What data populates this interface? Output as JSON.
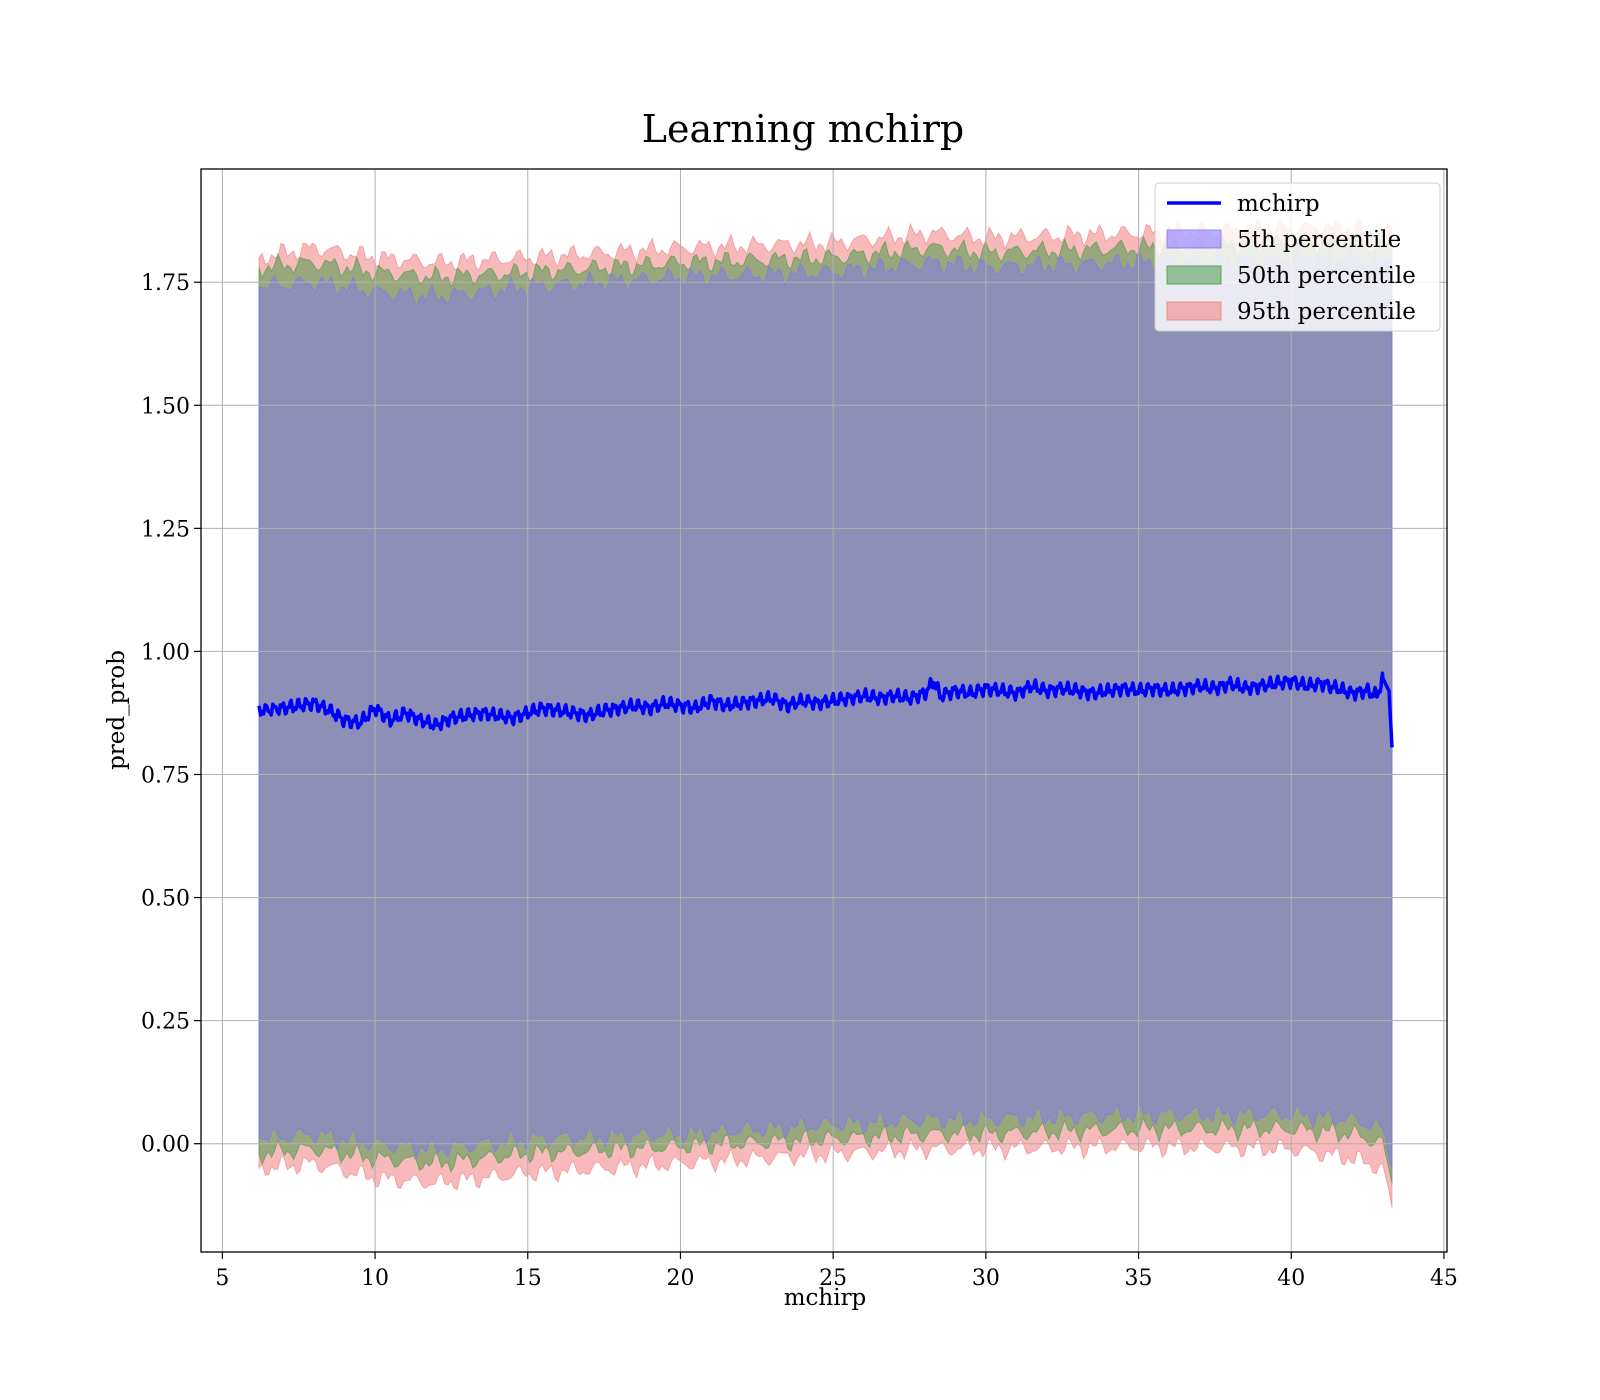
{
  "chart_data": {
    "type": "area",
    "title": "Learning mchirp",
    "xlabel": "mchirp",
    "ylabel": "pred_prob",
    "xlim": [
      4.3,
      45.1
    ],
    "ylim": [
      -0.22,
      1.98
    ],
    "xticks": [
      5,
      10,
      15,
      20,
      25,
      30,
      35,
      40,
      45
    ],
    "yticks": [
      0.0,
      0.25,
      0.5,
      0.75,
      1.0,
      1.25,
      1.5,
      1.75
    ],
    "ytick_labels": [
      "0.00",
      "0.25",
      "0.50",
      "0.75",
      "1.00",
      "1.25",
      "1.50",
      "1.75"
    ],
    "grid": true,
    "legend_position": "top-right",
    "legend": [
      {
        "label": "mchirp",
        "kind": "line",
        "color": "#0000ff"
      },
      {
        "label": "5th percentile",
        "kind": "band",
        "color": "#8070ff"
      },
      {
        "label": "50th percentile",
        "kind": "band",
        "color": "#4a9a4a"
      },
      {
        "label": "95th percentile",
        "kind": "band",
        "color": "#f08080"
      }
    ],
    "line_series": {
      "name": "mchirp",
      "color": "#0000ff",
      "x": [
        6.2,
        7.0,
        7.5,
        8.0,
        8.5,
        9.0,
        9.5,
        10.0,
        10.5,
        11.0,
        11.5,
        12.0,
        12.5,
        13.0,
        13.5,
        14.0,
        14.5,
        15.0,
        15.5,
        16.0,
        16.5,
        17.0,
        17.5,
        18.0,
        18.5,
        19.0,
        19.5,
        20.0,
        20.5,
        21.0,
        21.5,
        22.0,
        22.5,
        23.0,
        23.5,
        24.0,
        24.5,
        25.0,
        25.5,
        26.0,
        26.5,
        27.0,
        27.5,
        28.0,
        28.3,
        28.5,
        29.0,
        29.5,
        30.0,
        30.5,
        31.0,
        31.5,
        32.0,
        32.5,
        33.0,
        33.5,
        34.0,
        34.5,
        35.0,
        35.5,
        36.0,
        36.5,
        37.0,
        37.5,
        38.0,
        38.5,
        39.0,
        39.5,
        40.0,
        40.5,
        41.0,
        41.5,
        42.0,
        42.5,
        42.8,
        43.0,
        43.2,
        43.3
      ],
      "y": [
        0.88,
        0.885,
        0.89,
        0.895,
        0.88,
        0.86,
        0.855,
        0.885,
        0.86,
        0.875,
        0.86,
        0.85,
        0.865,
        0.87,
        0.875,
        0.87,
        0.865,
        0.875,
        0.885,
        0.88,
        0.875,
        0.87,
        0.88,
        0.885,
        0.89,
        0.885,
        0.895,
        0.89,
        0.885,
        0.9,
        0.89,
        0.895,
        0.9,
        0.905,
        0.89,
        0.9,
        0.895,
        0.9,
        0.905,
        0.91,
        0.905,
        0.91,
        0.905,
        0.915,
        0.94,
        0.91,
        0.92,
        0.915,
        0.925,
        0.92,
        0.915,
        0.93,
        0.92,
        0.925,
        0.92,
        0.915,
        0.92,
        0.925,
        0.92,
        0.925,
        0.92,
        0.925,
        0.93,
        0.925,
        0.935,
        0.925,
        0.93,
        0.935,
        0.94,
        0.93,
        0.935,
        0.925,
        0.915,
        0.92,
        0.91,
        0.945,
        0.92,
        0.805
      ]
    },
    "bands": [
      {
        "name": "95th percentile",
        "color": "#f08080",
        "x": [
          6.2,
          8.0,
          10.0,
          12.0,
          15.0,
          20.0,
          25.0,
          28.2,
          30.0,
          35.0,
          40.0,
          42.0,
          43.0,
          43.3
        ],
        "lower": [
          -0.05,
          -0.04,
          -0.07,
          -0.08,
          -0.06,
          -0.04,
          -0.02,
          -0.01,
          -0.01,
          -0.005,
          -0.01,
          -0.03,
          -0.05,
          -0.13
        ],
        "upper": [
          1.8,
          1.82,
          1.8,
          1.79,
          1.8,
          1.82,
          1.83,
          1.85,
          1.84,
          1.85,
          1.86,
          1.86,
          1.85,
          1.86
        ]
      },
      {
        "name": "50th percentile",
        "color": "#4a9a4a",
        "x": [
          6.2,
          8.0,
          10.0,
          12.0,
          15.0,
          20.0,
          25.0,
          28.2,
          30.0,
          35.0,
          40.0,
          42.0,
          43.0,
          43.3
        ],
        "lower": [
          -0.02,
          -0.01,
          -0.03,
          -0.04,
          -0.02,
          -0.005,
          0.01,
          0.02,
          0.02,
          0.03,
          0.03,
          0.02,
          0.0,
          -0.08
        ],
        "upper": [
          1.78,
          1.79,
          1.77,
          1.76,
          1.77,
          1.79,
          1.8,
          1.82,
          1.81,
          1.82,
          1.83,
          1.83,
          1.82,
          1.83
        ]
      },
      {
        "name": "5th percentile",
        "color": "#8070ff",
        "x": [
          6.2,
          8.0,
          10.0,
          12.0,
          15.0,
          20.0,
          25.0,
          28.2,
          30.0,
          35.0,
          40.0,
          42.0,
          43.0,
          43.3
        ],
        "lower": [
          0.01,
          0.02,
          0.0,
          -0.01,
          0.01,
          0.02,
          0.04,
          0.05,
          0.05,
          0.06,
          0.06,
          0.05,
          0.03,
          -0.05
        ],
        "upper": [
          1.74,
          1.75,
          1.73,
          1.72,
          1.74,
          1.76,
          1.77,
          1.79,
          1.78,
          1.79,
          1.8,
          1.8,
          1.79,
          1.8
        ]
      }
    ]
  }
}
